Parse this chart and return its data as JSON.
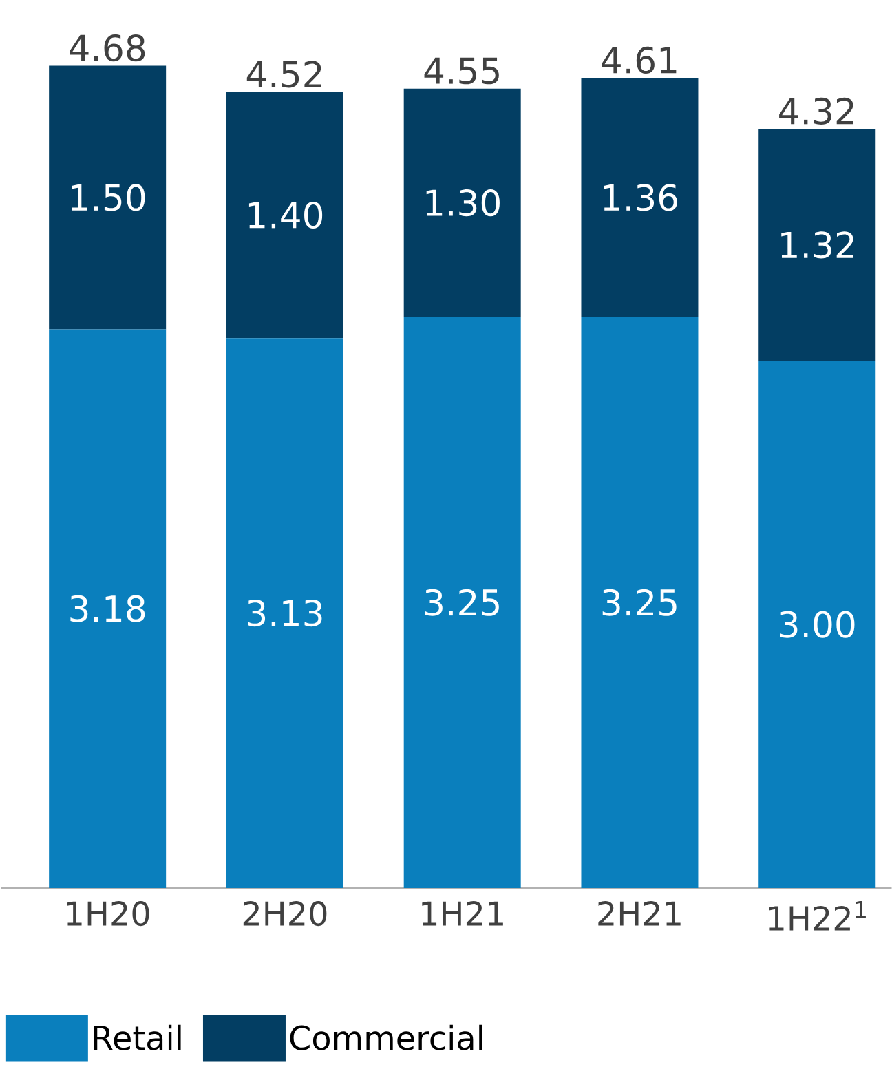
{
  "chart_data": {
    "type": "bar",
    "stacked": true,
    "categories": [
      "1H20",
      "2H20",
      "1H21",
      "2H21",
      "1H22$^{1}$"
    ],
    "series": [
      {
        "name": "Retail",
        "color": "#0a7fbd",
        "values": [
          3.18,
          3.13,
          3.25,
          3.25,
          3.0
        ],
        "value_labels": [
          "3.18",
          "3.13",
          "3.25",
          "3.25",
          "3.00"
        ]
      },
      {
        "name": "Commercial",
        "color": "#033e63",
        "values": [
          1.5,
          1.4,
          1.3,
          1.36,
          1.32
        ],
        "value_labels": [
          "1.50",
          "1.40",
          "1.30",
          "1.36",
          "1.32"
        ]
      }
    ],
    "totals": [
      "4.68",
      "4.52",
      "4.55",
      "4.61",
      "4.32"
    ],
    "legend": "bottom"
  }
}
